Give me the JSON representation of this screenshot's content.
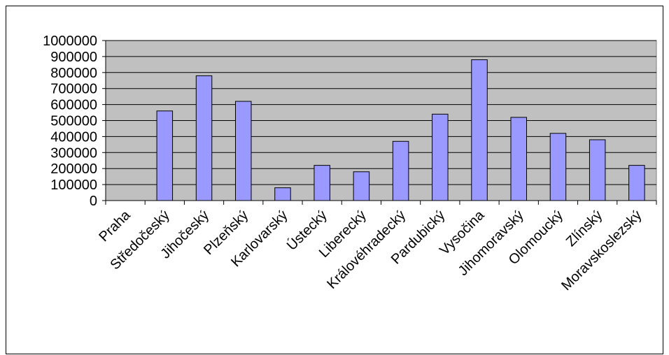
{
  "chart_data": {
    "type": "bar",
    "categories": [
      "Praha",
      "Středočeský",
      "Jihočeský",
      "Plzeňský",
      "Karlovarský",
      "Ústecký",
      "Liberecký",
      "Královéhradecký",
      "Pardubický",
      "Vysočina",
      "Jihomoravský",
      "Olomoucký",
      "Zlínský",
      "Moravskoslezský"
    ],
    "values": [
      0,
      560000,
      780000,
      620000,
      80000,
      220000,
      180000,
      370000,
      540000,
      880000,
      520000,
      420000,
      380000,
      220000
    ],
    "color": "#9999ff",
    "ylim": [
      0,
      1000000
    ],
    "yticks": [
      0,
      100000,
      200000,
      300000,
      400000,
      500000,
      600000,
      700000,
      800000,
      900000,
      1000000
    ],
    "grid": true
  }
}
